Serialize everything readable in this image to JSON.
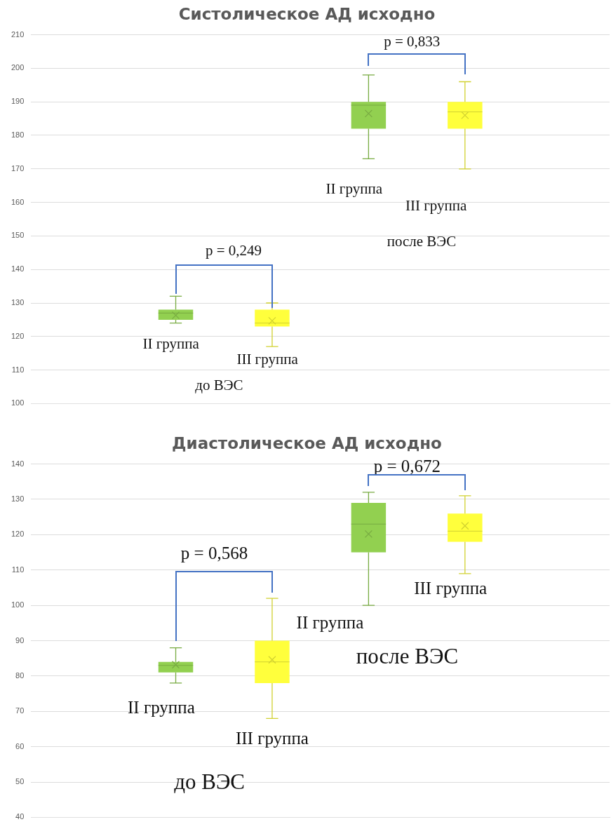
{
  "chart_data": [
    {
      "type": "box",
      "title": "Систолическое АД исходно",
      "categories": [
        null,
        null,
        null,
        null,
        null,
        null
      ],
      "boxes": [
        null,
        {
          "low": 124,
          "q1": 125,
          "median": 127,
          "q3": 128,
          "high": 132,
          "mean": 126.3
        },
        {
          "low": 117,
          "q1": 123,
          "median": 124,
          "q3": 128,
          "high": 130,
          "mean": 124.7
        },
        {
          "low": 173,
          "q1": 182,
          "median": 189,
          "q3": 190,
          "high": 198,
          "mean": 186.5
        },
        {
          "low": 170,
          "q1": 182,
          "median": 187,
          "q3": 190,
          "high": 196,
          "mean": 186
        },
        null
      ],
      "colors": [
        "#92d050",
        "#92d050",
        "#ffff3c",
        "#92d050",
        "#ffff3c",
        "#92d050"
      ],
      "ylim": [
        100,
        210
      ],
      "yticks": [
        100,
        110,
        120,
        130,
        140,
        150,
        160,
        170,
        180,
        190,
        200,
        210
      ],
      "grid": "y",
      "annotations": [
        "p = 0,249",
        "II группа",
        "III группа",
        "до ВЭС",
        "p = 0,833",
        "II группа",
        "III группа",
        "после ВЭС"
      ]
    },
    {
      "type": "box",
      "title": "Диастолическое АД исходно",
      "categories": [
        null,
        null,
        null,
        null,
        null,
        null
      ],
      "boxes": [
        null,
        {
          "low": 78,
          "q1": 81,
          "median": 83,
          "q3": 84,
          "high": 88,
          "mean": 83.2
        },
        {
          "low": 68,
          "q1": 78,
          "median": 84,
          "q3": 90,
          "high": 102,
          "mean": 84.6
        },
        {
          "low": 100,
          "q1": 115,
          "median": 123,
          "q3": 129,
          "high": 132,
          "mean": 120.2
        },
        {
          "low": 109,
          "q1": 118,
          "median": 121,
          "q3": 126,
          "high": 131,
          "mean": 122.5
        },
        null
      ],
      "colors": [
        "#92d050",
        "#92d050",
        "#ffff3c",
        "#92d050",
        "#ffff3c",
        "#92d050"
      ],
      "ylim": [
        40,
        140
      ],
      "yticks": [
        40,
        50,
        60,
        70,
        80,
        90,
        100,
        110,
        120,
        130,
        140
      ],
      "grid": "y",
      "annotations": [
        "p = 0,568",
        "II группа",
        "III группа",
        "до ВЭС",
        "p = 0,672",
        "II группа",
        "III группа",
        "после ВЭС"
      ]
    }
  ]
}
